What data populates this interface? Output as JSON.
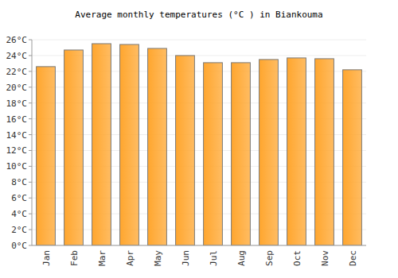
{
  "chart_data": {
    "type": "bar",
    "title": "Average monthly temperatures (°C ) in Biankouma",
    "categories": [
      "Jan",
      "Feb",
      "Mar",
      "Apr",
      "May",
      "Jun",
      "Jul",
      "Aug",
      "Sep",
      "Oct",
      "Nov",
      "Dec"
    ],
    "values": [
      22.6,
      24.7,
      25.5,
      25.4,
      24.9,
      24.0,
      23.1,
      23.1,
      23.5,
      23.7,
      23.6,
      22.2
    ],
    "color": "#ffa62e",
    "ylim": [
      0,
      26
    ],
    "yticks": [
      {
        "value": 0,
        "label": "0°C"
      },
      {
        "value": 2,
        "label": "2°C"
      },
      {
        "value": 4,
        "label": "4°C"
      },
      {
        "value": 6,
        "label": "6°C"
      },
      {
        "value": 8,
        "label": "8°C"
      },
      {
        "value": 10,
        "label": "10°C"
      },
      {
        "value": 12,
        "label": "12°C"
      },
      {
        "value": 14,
        "label": "14°C"
      },
      {
        "value": 16,
        "label": "16°C"
      },
      {
        "value": 18,
        "label": "18°C"
      },
      {
        "value": 20,
        "label": "20°C"
      },
      {
        "value": 22,
        "label": "22°C"
      },
      {
        "value": 24,
        "label": "24°C"
      },
      {
        "value": 26,
        "label": "26°C"
      }
    ],
    "grid": true
  }
}
